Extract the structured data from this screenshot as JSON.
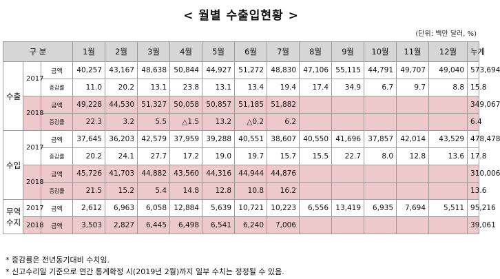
{
  "title": "< 월별 수출입현황 >",
  "unit": "(단위: 백만 달러, %)",
  "header": {
    "category": "구 분",
    "months": [
      "1월",
      "2월",
      "3월",
      "4월",
      "5월",
      "6월",
      "7월",
      "8월",
      "9월",
      "10월",
      "11월",
      "12월"
    ],
    "total": "누계"
  },
  "sections": [
    {
      "name": "수출",
      "rows": [
        {
          "year": "2017",
          "label": "금액",
          "highlight": false,
          "values": [
            "40,257",
            "43,167",
            "48,638",
            "50,844",
            "44,927",
            "51,272",
            "48,830",
            "47,106",
            "55,115",
            "44,791",
            "49,707",
            "49,040"
          ],
          "total": "573,694"
        },
        {
          "year": "",
          "label": "증감률",
          "highlight": false,
          "values": [
            "11.0",
            "20.2",
            "13.1",
            "23.8",
            "13.1",
            "13.4",
            "19.4",
            "17.4",
            "34.9",
            "6.7",
            "9.7",
            "8.8"
          ],
          "total": "15.8"
        },
        {
          "year": "2018",
          "label": "금액",
          "highlight": true,
          "values": [
            "49,228",
            "44,530",
            "51,327",
            "50,058",
            "50,857",
            "51,185",
            "51,882",
            "",
            "",
            "",
            "",
            ""
          ],
          "total": "349,067"
        },
        {
          "year": "",
          "label": "증감률",
          "highlight": true,
          "values": [
            "22.3",
            "3.2",
            "5.5",
            "△1.5",
            "13.2",
            "△0.2",
            "6.2",
            "",
            "",
            "",
            "",
            ""
          ],
          "total": "6.4"
        }
      ]
    },
    {
      "name": "수입",
      "rows": [
        {
          "year": "2017",
          "label": "금액",
          "highlight": false,
          "values": [
            "37,645",
            "36,203",
            "42,579",
            "37,959",
            "39,288",
            "40,551",
            "38,607",
            "40,550",
            "41,696",
            "37,857",
            "42,014",
            "43,529"
          ],
          "total": "478,478"
        },
        {
          "year": "",
          "label": "증감률",
          "highlight": false,
          "values": [
            "20.2",
            "24.1",
            "27.7",
            "17.2",
            "19.0",
            "19.7",
            "15.7",
            "15.5",
            "22.7",
            "8.0",
            "12.8",
            "13.6"
          ],
          "total": "17.8"
        },
        {
          "year": "2018",
          "label": "금액",
          "highlight": true,
          "values": [
            "45,726",
            "41,703",
            "44,882",
            "43,560",
            "44,316",
            "44,944",
            "44,876",
            "",
            "",
            "",
            "",
            ""
          ],
          "total": "310,006"
        },
        {
          "year": "",
          "label": "증감률",
          "highlight": true,
          "values": [
            "21.5",
            "15.2",
            "5.4",
            "14.8",
            "12.8",
            "10.8",
            "16.2",
            "",
            "",
            "",
            "",
            ""
          ],
          "total": "13.6"
        }
      ]
    },
    {
      "name": "무역수지",
      "name_lines": [
        "무역",
        "수지"
      ],
      "rows": [
        {
          "year": "2017",
          "label": "금액",
          "highlight": false,
          "values": [
            "2,612",
            "6,963",
            "6,058",
            "12,884",
            "5,639",
            "10,721",
            "10,223",
            "6,556",
            "13,419",
            "6,935",
            "7,694",
            "5,511"
          ],
          "total": "95,216"
        },
        {
          "year": "2018",
          "label": "금액",
          "highlight": true,
          "values": [
            "3,503",
            "2,827",
            "6,445",
            "6,498",
            "6,541",
            "6,240",
            "7,006",
            "",
            "",
            "",
            "",
            ""
          ],
          "total": "39,061"
        }
      ]
    }
  ],
  "footnotes": [
    "* 증감률은 전년동기대비 수치임.",
    "* 신고수리일 기준으로 연간 통계확정 시(2019년 2월)까지 일부 수치는 정정될 수 있음."
  ]
}
